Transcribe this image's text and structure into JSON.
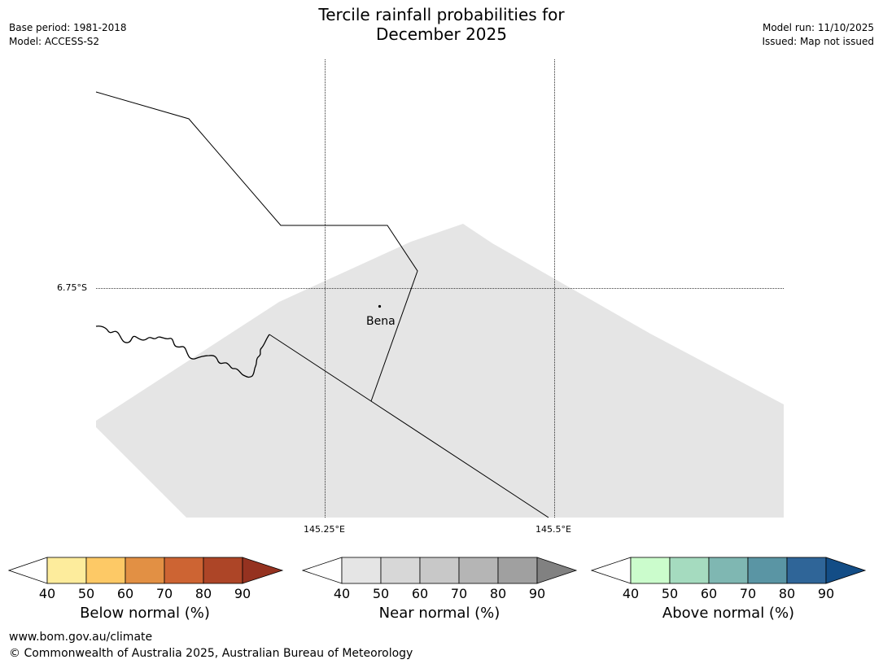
{
  "title_line1": "Tercile rainfall probabilities for",
  "title_line2": "December 2025",
  "base_period": "Base period: 1981-2018",
  "model": "Model: ACCESS-S2",
  "model_run": "Model run: 11/10/2025",
  "issued": "Issued: Map not issued",
  "map": {
    "lat_label": "6.75°S",
    "lon_labels": [
      "145.25°E",
      "145.5°E"
    ],
    "city": "Bena"
  },
  "colorbars": [
    {
      "label": "Below normal (%)",
      "ticks": [
        "40",
        "50",
        "60",
        "70",
        "80",
        "90"
      ],
      "colors": [
        "#ffffff",
        "#fdec9c",
        "#fdc966",
        "#e29044",
        "#cd6433",
        "#ad4527",
        "#953220"
      ]
    },
    {
      "label": "Near normal (%)",
      "ticks": [
        "40",
        "50",
        "60",
        "70",
        "80",
        "90"
      ],
      "colors": [
        "#ffffff",
        "#e5e5e5",
        "#d7d7d7",
        "#c8c8c8",
        "#b5b5b5",
        "#a0a0a0",
        "#818181"
      ]
    },
    {
      "label": "Above normal (%)",
      "ticks": [
        "40",
        "50",
        "60",
        "70",
        "80",
        "90"
      ],
      "colors": [
        "#ffffff",
        "#cbfccc",
        "#a5dbbf",
        "#7fb7b2",
        "#5a95a4",
        "#2f6598",
        "#134d86"
      ]
    }
  ],
  "footer_url": "www.bom.gov.au/climate",
  "footer_copyright": "© Commonwealth of Australia 2025, Australian Bureau of Meteorology"
}
